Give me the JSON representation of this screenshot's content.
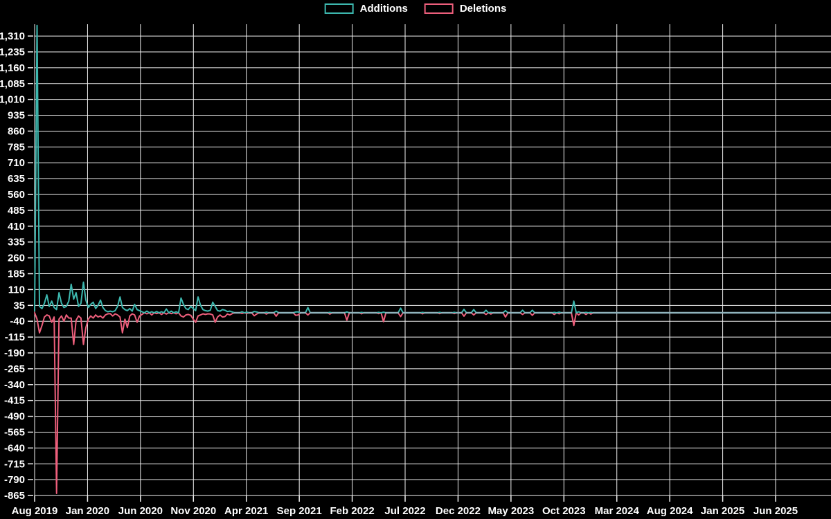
{
  "legend": {
    "additions_label": "Additions",
    "deletions_label": "Deletions"
  },
  "colors": {
    "background": "#000000",
    "grid": "#f2f2f2",
    "text": "#ffffff",
    "additions": "#3db8af",
    "deletions": "#ee5f7c",
    "overlap_flat": "#8fb3bc"
  },
  "chart_data": {
    "type": "line",
    "title": "",
    "xlabel": "",
    "ylabel": "",
    "legend_position": "top-center",
    "grid": true,
    "x_tick_labels": [
      "Aug 2019",
      "Jan 2020",
      "Jun 2020",
      "Nov 2020",
      "Apr 2021",
      "Sep 2021",
      "Feb 2022",
      "Jul 2022",
      "Dec 2022",
      "May 2023",
      "Oct 2023",
      "Mar 2024",
      "Aug 2024",
      "Jan 2025",
      "Jun 2025"
    ],
    "y_ticks": [
      1310,
      1235,
      1160,
      1085,
      1010,
      935,
      860,
      785,
      710,
      635,
      560,
      485,
      410,
      335,
      260,
      185,
      110,
      35,
      -40,
      -115,
      -190,
      -265,
      -340,
      -415,
      -490,
      -565,
      -640,
      -715,
      -790,
      -865
    ],
    "ylim": [
      -885,
      1366
    ],
    "x_unit": "week",
    "weeks_total": 327,
    "series": [
      {
        "name": "Additions",
        "color": "#3db8af"
      },
      {
        "name": "Deletions",
        "color": "#ee5f7c"
      }
    ],
    "nonzero_weeks_comment": "sparse rows [week_index, additions, deletions]; all other weeks are [0,0]",
    "nonzero_weeks": [
      [
        0,
        10,
        0
      ],
      [
        1,
        1360,
        -30
      ],
      [
        2,
        30,
        -95
      ],
      [
        3,
        20,
        -60
      ],
      [
        4,
        45,
        -20
      ],
      [
        5,
        85,
        -10
      ],
      [
        6,
        30,
        -15
      ],
      [
        7,
        55,
        -45
      ],
      [
        8,
        25,
        -20
      ],
      [
        9,
        15,
        -855
      ],
      [
        10,
        95,
        -30
      ],
      [
        11,
        45,
        -15
      ],
      [
        12,
        25,
        -40
      ],
      [
        13,
        30,
        -10
      ],
      [
        14,
        55,
        -25
      ],
      [
        15,
        135,
        -25
      ],
      [
        16,
        65,
        -150
      ],
      [
        17,
        95,
        -35
      ],
      [
        18,
        30,
        -15
      ],
      [
        19,
        45,
        -25
      ],
      [
        20,
        145,
        -150
      ],
      [
        21,
        60,
        -70
      ],
      [
        22,
        25,
        -30
      ],
      [
        23,
        40,
        -15
      ],
      [
        24,
        50,
        -25
      ],
      [
        25,
        20,
        -10
      ],
      [
        26,
        35,
        -20
      ],
      [
        27,
        60,
        -15
      ],
      [
        28,
        25,
        -25
      ],
      [
        29,
        10,
        -10
      ],
      [
        30,
        5,
        -5
      ],
      [
        31,
        8,
        -4
      ],
      [
        32,
        5,
        -15
      ],
      [
        33,
        10,
        -5
      ],
      [
        34,
        30,
        -10
      ],
      [
        35,
        75,
        -20
      ],
      [
        36,
        25,
        -95
      ],
      [
        37,
        15,
        -30
      ],
      [
        38,
        10,
        -70
      ],
      [
        39,
        20,
        -15
      ],
      [
        40,
        8,
        -5
      ],
      [
        41,
        40,
        -10
      ],
      [
        42,
        15,
        -45
      ],
      [
        43,
        10,
        -15
      ],
      [
        44,
        5,
        -8
      ],
      [
        46,
        8,
        -5
      ],
      [
        48,
        5,
        -10
      ],
      [
        50,
        6,
        -4
      ],
      [
        52,
        5,
        -8
      ],
      [
        54,
        18,
        -6
      ],
      [
        56,
        8,
        -4
      ],
      [
        58,
        5,
        -5
      ],
      [
        60,
        70,
        -15
      ],
      [
        61,
        40,
        -20
      ],
      [
        62,
        20,
        -10
      ],
      [
        63,
        15,
        -8
      ],
      [
        64,
        30,
        -12
      ],
      [
        65,
        20,
        -30
      ],
      [
        66,
        10,
        -45
      ],
      [
        67,
        75,
        -15
      ],
      [
        68,
        35,
        -10
      ],
      [
        69,
        15,
        -5
      ],
      [
        70,
        10,
        -8
      ],
      [
        71,
        8,
        -5
      ],
      [
        72,
        12,
        -6
      ],
      [
        73,
        50,
        -10
      ],
      [
        74,
        30,
        -45
      ],
      [
        75,
        10,
        -20
      ],
      [
        76,
        8,
        -10
      ],
      [
        77,
        15,
        -20
      ],
      [
        78,
        12,
        -18
      ],
      [
        79,
        6,
        -6
      ],
      [
        80,
        8,
        -10
      ],
      [
        81,
        4,
        -4
      ],
      [
        85,
        5,
        -3
      ],
      [
        87,
        3,
        -3
      ],
      [
        90,
        6,
        -14
      ],
      [
        91,
        4,
        -6
      ],
      [
        95,
        3,
        -6
      ],
      [
        99,
        8,
        -16
      ],
      [
        107,
        4,
        -12
      ],
      [
        108,
        4,
        -10
      ],
      [
        112,
        25,
        -10
      ],
      [
        121,
        2,
        -6
      ],
      [
        128,
        4,
        -35
      ],
      [
        134,
        2,
        -5
      ],
      [
        141,
        2,
        -4
      ],
      [
        143,
        3,
        -42
      ],
      [
        150,
        22,
        -18
      ],
      [
        159,
        2,
        -5
      ],
      [
        166,
        2,
        -4
      ],
      [
        172,
        2,
        -4
      ],
      [
        176,
        16,
        -16
      ],
      [
        180,
        15,
        -10
      ],
      [
        185,
        12,
        -8
      ],
      [
        187,
        2,
        -6
      ],
      [
        193,
        10,
        -20
      ],
      [
        200,
        12,
        -8
      ],
      [
        204,
        12,
        -12
      ],
      [
        213,
        2,
        -8
      ],
      [
        215,
        3,
        -5
      ],
      [
        221,
        55,
        -60
      ],
      [
        223,
        5,
        -10
      ],
      [
        226,
        2,
        -8
      ],
      [
        228,
        2,
        -6
      ]
    ]
  }
}
